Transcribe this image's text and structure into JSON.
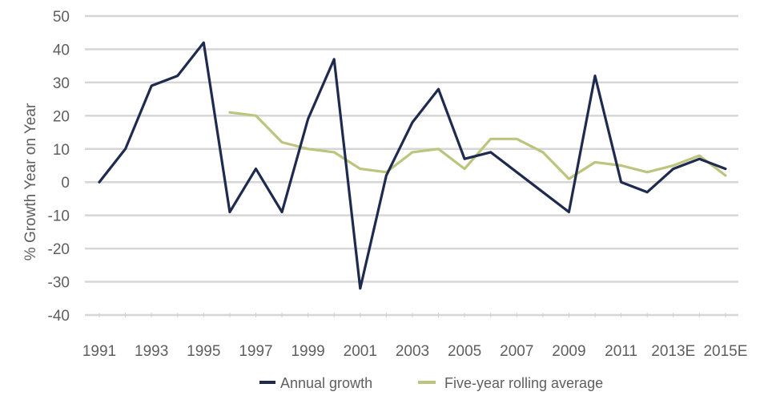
{
  "chart_data": {
    "type": "line",
    "title": "",
    "xlabel": "",
    "ylabel": "% Growth Year on Year",
    "ylim": [
      -40,
      50
    ],
    "yticks": [
      50,
      40,
      30,
      20,
      10,
      0,
      -10,
      -20,
      -30,
      -40
    ],
    "grid": true,
    "legend_position": "bottom",
    "x": [
      "1991",
      "1992",
      "1993",
      "1994",
      "1995",
      "1996",
      "1997",
      "1998",
      "1999",
      "2000",
      "2001",
      "2002",
      "2003",
      "2004",
      "2005",
      "2006",
      "2007",
      "2008",
      "2009",
      "2010",
      "2011",
      "2012",
      "2013E",
      "2014E",
      "2015E"
    ],
    "xtick_labels": [
      "1991",
      "1993",
      "1995",
      "1997",
      "1999",
      "2001",
      "2003",
      "2005",
      "2007",
      "2009",
      "2011",
      "2013E",
      "2015E"
    ],
    "series": [
      {
        "name": "Annual growth",
        "color": "#1f2a4f",
        "values": [
          0,
          10,
          29,
          32,
          42,
          -9,
          4,
          -9,
          19,
          37,
          -32,
          2,
          18,
          28,
          7,
          9,
          3,
          -3,
          -9,
          32,
          0,
          -3,
          4,
          7,
          4
        ]
      },
      {
        "name": "Five-year rolling average",
        "color": "#bcc47e",
        "values": [
          null,
          null,
          null,
          null,
          null,
          21,
          20,
          12,
          10,
          9,
          4,
          3,
          9,
          10,
          4,
          13,
          13,
          9,
          1,
          6,
          5,
          3,
          5,
          8,
          2
        ]
      }
    ]
  },
  "legend": {
    "items": [
      {
        "label": "Annual growth"
      },
      {
        "label": "Five-year rolling average"
      }
    ]
  }
}
